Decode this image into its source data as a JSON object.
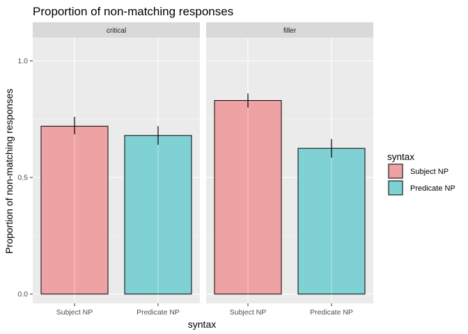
{
  "chart_data": {
    "type": "bar",
    "title": "Proportion of non-matching responses",
    "xlabel": "syntax",
    "ylabel": "Proportion of non-matching responses",
    "ylim": [
      -0.04,
      1.1
    ],
    "yticks": [
      0.0,
      0.5,
      1.0
    ],
    "ytick_labels": [
      "0.0",
      "0.5",
      "1.0"
    ],
    "categories": [
      "Subject NP",
      "Predicate NP"
    ],
    "grid": true,
    "legend": {
      "title": "syntax",
      "position": "right",
      "entries": [
        "Subject NP",
        "Predicate NP"
      ]
    },
    "colors": {
      "Subject NP": "#EFA2A3",
      "Predicate NP": "#80D1D3",
      "panel_background": "#EBEBEB",
      "strip_background": "#D9D9D9"
    },
    "panels": [
      {
        "label": "critical",
        "values": [
          0.72,
          0.68
        ],
        "error_low": [
          0.685,
          0.64
        ],
        "error_high": [
          0.76,
          0.72
        ]
      },
      {
        "label": "filler",
        "values": [
          0.83,
          0.625
        ],
        "error_low": [
          0.8,
          0.585
        ],
        "error_high": [
          0.86,
          0.665
        ]
      }
    ]
  }
}
